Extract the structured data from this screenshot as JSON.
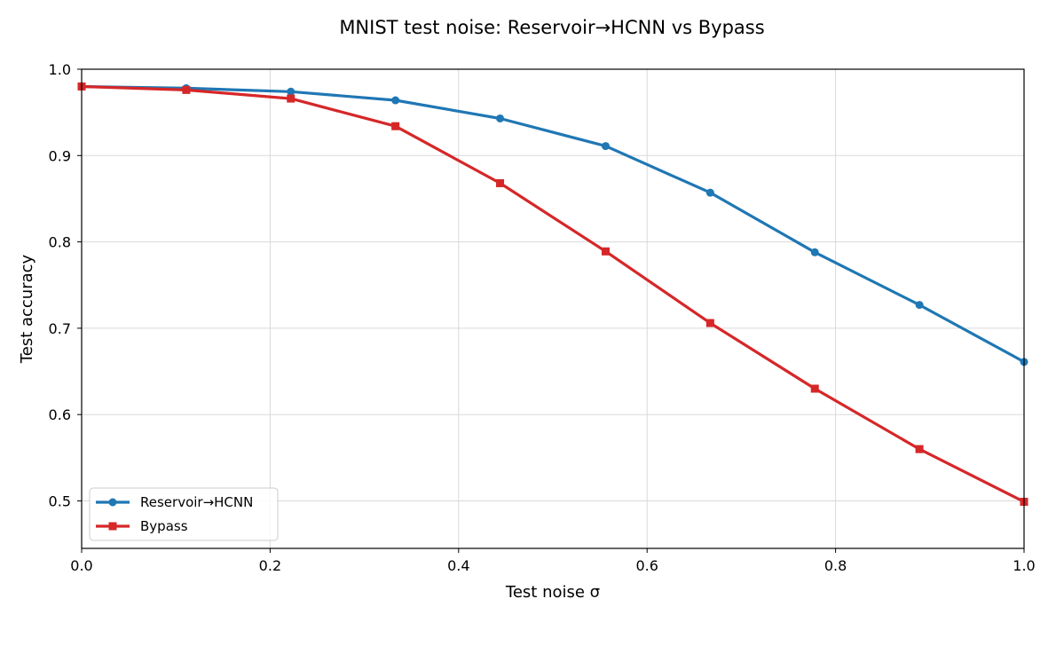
{
  "chart_data": {
    "type": "line",
    "title": "MNIST test noise: Reservoir→HCNN vs Bypass",
    "xlabel": "Test noise σ",
    "ylabel": "Test accuracy",
    "xlim": [
      0.0,
      1.0
    ],
    "ylim": [
      0.445,
      1.0
    ],
    "xticks": [
      "0.0",
      "0.2",
      "0.4",
      "0.6",
      "0.8",
      "1.0"
    ],
    "yticks": [
      "0.5",
      "0.6",
      "0.7",
      "0.8",
      "0.9",
      "1.0"
    ],
    "grid": true,
    "legend_position": "lower-left",
    "x": [
      0.0,
      0.111,
      0.222,
      0.333,
      0.444,
      0.556,
      0.667,
      0.778,
      0.889,
      1.0
    ],
    "series": [
      {
        "name": "Reservoir→HCNN",
        "color": "#1f77b4",
        "marker": "circle",
        "values": [
          0.98,
          0.978,
          0.974,
          0.964,
          0.943,
          0.911,
          0.857,
          0.788,
          0.727,
          0.661
        ]
      },
      {
        "name": "Bypass",
        "color": "#d62728",
        "marker": "square",
        "values": [
          0.98,
          0.976,
          0.966,
          0.934,
          0.868,
          0.789,
          0.706,
          0.63,
          0.56,
          0.499
        ]
      }
    ]
  }
}
